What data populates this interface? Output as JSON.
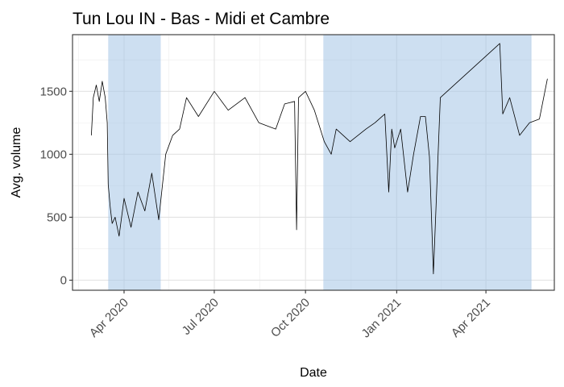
{
  "chart_data": {
    "type": "line",
    "title": "Tun Lou IN - Bas - Midi et Cambre",
    "xlabel": "Date",
    "ylabel": "Avg. volume",
    "x_ticks": [
      "Apr 2020",
      "Jul 2020",
      "Oct 2020",
      "Jan 2021",
      "Apr 2021"
    ],
    "y_ticks": [
      "0",
      "500",
      "1000",
      "1500"
    ],
    "xlim": [
      "2020-02-09",
      "2021-06-09"
    ],
    "ylim": [
      -80,
      1950
    ],
    "grid": true,
    "shaded_periods": [
      {
        "start": "2020-03-16",
        "end": "2020-05-08",
        "color": "#a4c4e6"
      },
      {
        "start": "2020-10-19",
        "end": "2021-05-17",
        "color": "#a4c4e6"
      }
    ],
    "line_color": "#000000",
    "series": [
      {
        "x": [
          "2020-02-28",
          "2020-03-01",
          "2020-03-04",
          "2020-03-07",
          "2020-03-10",
          "2020-03-13",
          "2020-03-15",
          "2020-03-16",
          "2020-03-18",
          "2020-03-20",
          "2020-03-23",
          "2020-03-27",
          "2020-04-01",
          "2020-04-08",
          "2020-04-15",
          "2020-04-22",
          "2020-04-29",
          "2020-05-06",
          "2020-05-13",
          "2020-05-20",
          "2020-05-27",
          "2020-06-03",
          "2020-06-15",
          "2020-07-01",
          "2020-07-15",
          "2020-08-01",
          "2020-08-15",
          "2020-09-01",
          "2020-09-10",
          "2020-09-20",
          "2020-09-22",
          "2020-09-24",
          "2020-10-01",
          "2020-10-10",
          "2020-10-20",
          "2020-10-27",
          "2020-11-01",
          "2020-11-15",
          "2020-12-01",
          "2020-12-10",
          "2020-12-20",
          "2020-12-24",
          "2020-12-27",
          "2020-12-30",
          "2021-01-05",
          "2021-01-12",
          "2021-01-18",
          "2021-01-25",
          "2021-01-30",
          "2021-02-03",
          "2021-02-07",
          "2021-02-14",
          "2021-04-15",
          "2021-04-18",
          "2021-04-25",
          "2021-05-05",
          "2021-05-15",
          "2021-05-25",
          "2021-06-02"
        ],
        "y": [
          1150,
          1450,
          1550,
          1420,
          1580,
          1450,
          1250,
          760,
          580,
          450,
          500,
          350,
          650,
          420,
          700,
          550,
          850,
          480,
          1000,
          1150,
          1200,
          1450,
          1300,
          1500,
          1350,
          1450,
          1250,
          1200,
          1400,
          1420,
          400,
          1450,
          1500,
          1350,
          1100,
          1000,
          1200,
          1100,
          1200,
          1250,
          1320,
          700,
          1200,
          1050,
          1200,
          700,
          1000,
          1300,
          1300,
          980,
          50,
          1450,
          1880,
          1320,
          1450,
          1150,
          1250,
          1280,
          1600
        ],
        "values": [
          1150,
          1450,
          1550,
          1420,
          1580,
          1450,
          1250,
          760,
          580,
          450,
          500,
          350,
          650,
          420,
          700,
          550,
          850,
          480,
          1000,
          1150,
          1200,
          1450,
          1300,
          1500,
          1350,
          1450,
          1250,
          1200,
          1400,
          1420,
          400,
          1450,
          1500,
          1350,
          1100,
          1000,
          1200,
          1100,
          1200,
          1250,
          1320,
          700,
          1200,
          1050,
          1200,
          700,
          1000,
          1300,
          1300,
          980,
          50,
          1450,
          1880,
          1320,
          1450,
          1150,
          1250,
          1280,
          1600
        ]
      }
    ]
  }
}
